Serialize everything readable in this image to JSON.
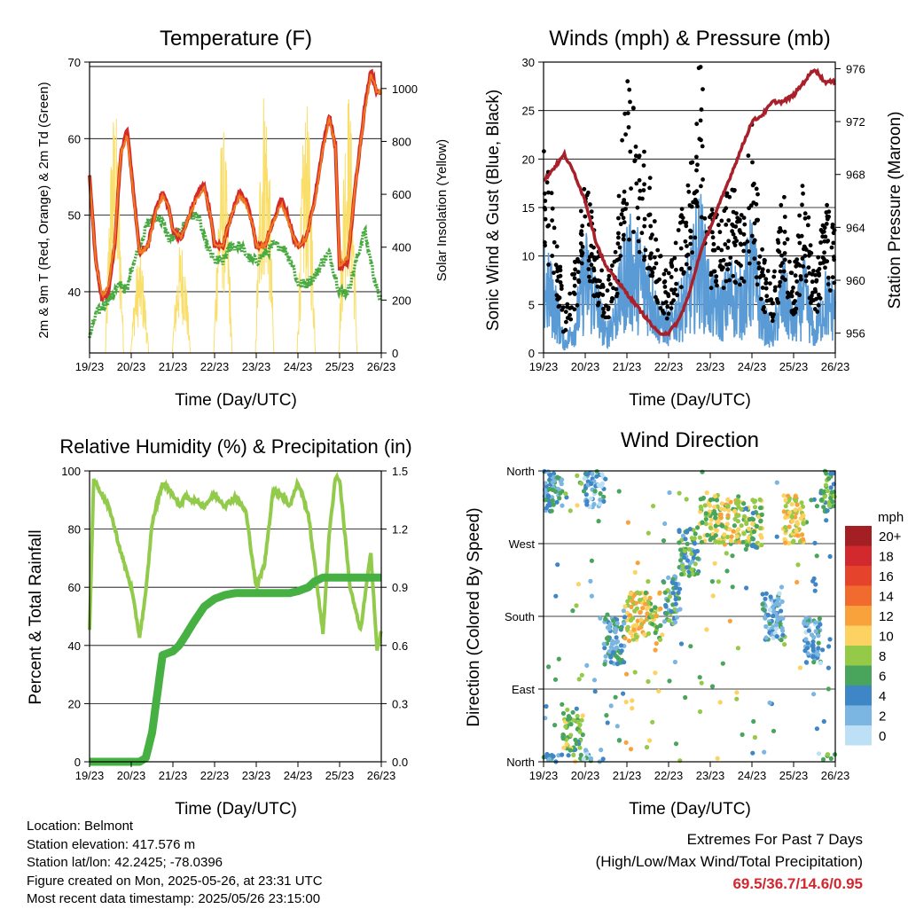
{
  "colors": {
    "temp_2m": "#d42a2a",
    "temp_9m": "#ef7a1f",
    "dewpoint": "#4aaa42",
    "solar": "#f9de6a",
    "gust": "#000000",
    "sonic_wind": "#5b9bd5",
    "pressure": "#a8202a",
    "rh": "#92ca4c",
    "precip": "#46b043",
    "extremes_text": "#d3272f"
  },
  "time_ticks": [
    "19/23",
    "20/23",
    "21/23",
    "22/23",
    "23/23",
    "24/23",
    "25/23",
    "26/23"
  ],
  "panels": {
    "temperature": {
      "title": "Temperature (F)",
      "left_label": "2m & 9m T (Red, Orange) & 2m Td (Green)",
      "right_label": "Solar Insolation (Yellow)",
      "xlabel": "Time (Day/UTC)"
    },
    "winds": {
      "title": "Winds (mph) & Pressure (mb)",
      "left_label": "Sonic Wind & Gust (Blue, Black)",
      "right_label": "Station Pressure (Maroon)",
      "xlabel": "Time (Day/UTC)"
    },
    "humidity": {
      "title": "Relative Humidity (%) & Precipitation (in)",
      "left_label": "Percent & Total Rainfall",
      "xlabel": "Time (Day/UTC)"
    },
    "direction": {
      "title": "Wind Direction",
      "left_label": "Direction (Colored By Speed)",
      "xlabel": "Time (Day/UTC)",
      "legend_title": "mph"
    }
  },
  "station": {
    "location": "Location: Belmont",
    "elevation": "Station elevation: 417.576 m",
    "latlon": "Station lat/lon: 42.2425; -78.0396",
    "created": "Figure created on Mon, 2025-05-26, at 23:31 UTC",
    "recent": "Most recent data timestamp: 2025/05/26 23:15:00"
  },
  "extremes": {
    "title": "Extremes For Past 7 Days",
    "subtitle": "(High/Low/Max Wind/Total Precipitation)",
    "values": "69.5/36.7/14.6/0.95"
  },
  "chart_data": [
    {
      "type": "line",
      "title": "Temperature (F)",
      "xlabel": "Time (Day/UTC)",
      "ylabel": "2m & 9m T (Red, Orange) & 2m Td (Green)",
      "ylabel_right": "Solar Insolation (Yellow)",
      "xlim": [
        0,
        7
      ],
      "x_ticks": [
        "19/23",
        "20/23",
        "21/23",
        "22/23",
        "23/23",
        "24/23",
        "25/23",
        "26/23"
      ],
      "ylim": [
        32,
        70
      ],
      "y_ticks": [
        40,
        50,
        60,
        70
      ],
      "ylim_right": [
        0,
        1100
      ],
      "y_ticks_right": [
        0,
        200,
        400,
        600,
        800,
        1000
      ],
      "x": [
        0,
        0.15,
        0.3,
        0.45,
        0.6,
        0.75,
        0.9,
        1.0,
        1.2,
        1.4,
        1.6,
        1.75,
        1.9,
        2.0,
        2.2,
        2.4,
        2.6,
        2.75,
        2.9,
        3.0,
        3.2,
        3.4,
        3.6,
        3.75,
        3.9,
        4.0,
        4.2,
        4.4,
        4.6,
        4.75,
        4.9,
        5.0,
        5.2,
        5.4,
        5.6,
        5.75,
        5.9,
        6.0,
        6.2,
        6.4,
        6.6,
        6.75,
        6.9,
        7.0
      ],
      "series": [
        {
          "name": "2m T",
          "values": [
            55,
            44,
            39,
            40,
            46,
            58,
            61,
            56,
            45,
            46,
            51,
            53,
            51,
            48,
            47,
            50,
            53,
            54,
            50,
            46,
            46,
            50,
            53,
            52,
            49,
            46,
            46,
            49,
            52,
            50,
            47,
            46,
            47,
            52,
            59,
            63,
            59,
            43,
            44,
            55,
            64,
            69,
            66,
            66
          ]
        },
        {
          "name": "9m T",
          "values": [
            55,
            44,
            39.5,
            40.5,
            46.5,
            58,
            60.5,
            55.5,
            45,
            46,
            50.5,
            52.5,
            51,
            48,
            47,
            50,
            52.5,
            53.5,
            50,
            46,
            46,
            50,
            52.5,
            51.5,
            49,
            46,
            46,
            49,
            51.5,
            49.5,
            47,
            46,
            47,
            51.5,
            58.5,
            62.5,
            59,
            43.5,
            44.5,
            55,
            63.5,
            68.5,
            66,
            66
          ]
        },
        {
          "name": "2m Td",
          "values": [
            34,
            37,
            38,
            39,
            40,
            41,
            40,
            43,
            46,
            49,
            50,
            49,
            47,
            47,
            48,
            50,
            50,
            47,
            45,
            44,
            44,
            46,
            46,
            45,
            44,
            44,
            45,
            46,
            46,
            45,
            43,
            41,
            41,
            42,
            44,
            45,
            42,
            40,
            40,
            44,
            48,
            44,
            40,
            39
          ]
        },
        {
          "name": "Solar Insolation",
          "axis": "right",
          "values": [
            0,
            0,
            0,
            0,
            950,
            0,
            0,
            0,
            380,
            0,
            0,
            0,
            0,
            0,
            430,
            0,
            0,
            0,
            0,
            0,
            860,
            0,
            0,
            0,
            0,
            0,
            1050,
            0,
            0,
            0,
            0,
            0,
            950,
            0,
            0,
            0,
            0,
            0,
            1020,
            0,
            0,
            0,
            0,
            0
          ]
        }
      ]
    },
    {
      "type": "scatter",
      "title": "Winds (mph) & Pressure (mb)",
      "xlabel": "Time (Day/UTC)",
      "ylabel": "Sonic Wind & Gust (Blue, Black)",
      "ylabel_right": "Station Pressure (Maroon)",
      "xlim": [
        0,
        7
      ],
      "x_ticks": [
        "19/23",
        "20/23",
        "21/23",
        "22/23",
        "23/23",
        "24/23",
        "25/23",
        "26/23"
      ],
      "ylim": [
        0,
        30
      ],
      "y_ticks": [
        0,
        5,
        10,
        15,
        20,
        25,
        30
      ],
      "ylim_right": [
        954.5,
        976.5
      ],
      "y_ticks_right": [
        956,
        960,
        964,
        968,
        972,
        976
      ],
      "x": [
        0,
        0.25,
        0.5,
        0.75,
        1.0,
        1.25,
        1.5,
        1.75,
        2.0,
        2.25,
        2.5,
        2.75,
        3.0,
        3.25,
        3.5,
        3.75,
        4.0,
        4.25,
        4.5,
        4.75,
        5.0,
        5.25,
        5.5,
        5.75,
        6.0,
        6.25,
        6.5,
        6.75,
        7.0
      ],
      "series": [
        {
          "name": "Gust",
          "values": [
            16,
            12,
            3,
            7,
            14,
            9,
            5,
            10,
            22,
            18,
            15,
            8,
            6,
            10,
            14,
            24,
            12,
            10,
            14,
            11,
            18,
            8,
            5,
            13,
            6,
            14,
            6,
            12,
            10
          ]
        },
        {
          "name": "Sonic Wind",
          "values": [
            8,
            6,
            1,
            3,
            9,
            6,
            2,
            5,
            10,
            9,
            8,
            4,
            3,
            5,
            7,
            12,
            6,
            5,
            7,
            6,
            10,
            4,
            2,
            7,
            3,
            7,
            2,
            6,
            5
          ]
        },
        {
          "name": "Station Pressure",
          "axis": "right",
          "values": [
            967.5,
            968.5,
            969.5,
            968,
            966,
            963,
            961,
            960,
            959,
            958,
            957,
            956,
            956,
            957,
            959,
            962,
            964,
            966,
            968,
            970,
            972,
            972.5,
            973.5,
            973.5,
            974,
            975,
            976,
            975,
            975
          ]
        }
      ]
    },
    {
      "type": "line",
      "title": "Relative Humidity (%) & Precipitation (in)",
      "xlabel": "Time (Day/UTC)",
      "ylabel": "Percent & Total Rainfall",
      "xlim": [
        0,
        7
      ],
      "x_ticks": [
        "19/23",
        "20/23",
        "21/23",
        "22/23",
        "23/23",
        "24/23",
        "25/23",
        "26/23"
      ],
      "ylim": [
        0,
        100
      ],
      "y_ticks": [
        0,
        20,
        40,
        60,
        80,
        100
      ],
      "ylim_right": [
        0,
        1.5
      ],
      "y_ticks_right": [
        0.0,
        0.3,
        0.6,
        0.9,
        1.2,
        1.5
      ],
      "x": [
        0,
        0.1,
        0.3,
        0.5,
        0.75,
        1.0,
        1.2,
        1.35,
        1.5,
        1.75,
        2.0,
        2.15,
        2.3,
        2.5,
        2.75,
        3.0,
        3.25,
        3.5,
        3.75,
        4.0,
        4.2,
        4.4,
        4.6,
        4.8,
        5.0,
        5.25,
        5.4,
        5.6,
        5.75,
        5.9,
        6.0,
        6.25,
        6.5,
        6.75,
        6.9,
        7.0
      ],
      "series": [
        {
          "name": "Relative Humidity",
          "values": [
            46,
            97,
            92,
            86,
            72,
            60,
            43,
            58,
            82,
            96,
            92,
            88,
            91,
            90,
            88,
            92,
            88,
            91,
            86,
            60,
            68,
            93,
            92,
            88,
            96,
            85,
            68,
            44,
            78,
            98,
            97,
            60,
            45,
            72,
            38,
            45
          ]
        },
        {
          "name": "Total Rainfall",
          "axis": "right",
          "values": [
            0,
            0,
            0,
            0,
            0,
            0,
            0,
            0.02,
            0.15,
            0.55,
            0.57,
            0.6,
            0.65,
            0.72,
            0.8,
            0.84,
            0.86,
            0.87,
            0.87,
            0.87,
            0.87,
            0.87,
            0.87,
            0.87,
            0.88,
            0.9,
            0.93,
            0.95,
            0.95,
            0.95,
            0.95,
            0.95,
            0.95,
            0.95,
            0.95,
            0.95
          ]
        }
      ]
    },
    {
      "type": "scatter",
      "title": "Wind Direction",
      "xlabel": "Time (Day/UTC)",
      "ylabel": "Direction (Colored By Speed)",
      "xlim": [
        0,
        7
      ],
      "x_ticks": [
        "19/23",
        "20/23",
        "21/23",
        "22/23",
        "23/23",
        "24/23",
        "25/23",
        "26/23"
      ],
      "ylim": [
        0,
        360
      ],
      "y_ticks": [
        "North",
        "East",
        "South",
        "West",
        "North"
      ],
      "color_scale": {
        "title": "mph",
        "labels": [
          "20+",
          "18",
          "16",
          "14",
          "12",
          "10",
          "8",
          "6",
          "4",
          "2",
          "0"
        ],
        "colors": [
          "#a41f24",
          "#d1292e",
          "#e6432d",
          "#f26b2e",
          "#f9a23b",
          "#fcd263",
          "#95c948",
          "#48a55b",
          "#3f86c6",
          "#7bb5e1",
          "#bde0f6"
        ]
      },
      "x": [
        0.2,
        0.7,
        1.2,
        1.7,
        2.2,
        2.7,
        3.0,
        3.5,
        4.0,
        4.5,
        5.0,
        5.5,
        6.0,
        6.5,
        6.8
      ],
      "series": [
        {
          "name": "Direction (deg)",
          "values": [
            340,
            30,
            345,
            150,
            180,
            180,
            200,
            260,
            300,
            295,
            295,
            180,
            300,
            150,
            340
          ]
        },
        {
          "name": "Speed (mph)",
          "values": [
            4,
            7,
            3,
            4,
            10,
            9,
            5,
            5,
            8,
            9,
            7,
            3,
            10,
            3,
            6
          ]
        }
      ]
    }
  ]
}
